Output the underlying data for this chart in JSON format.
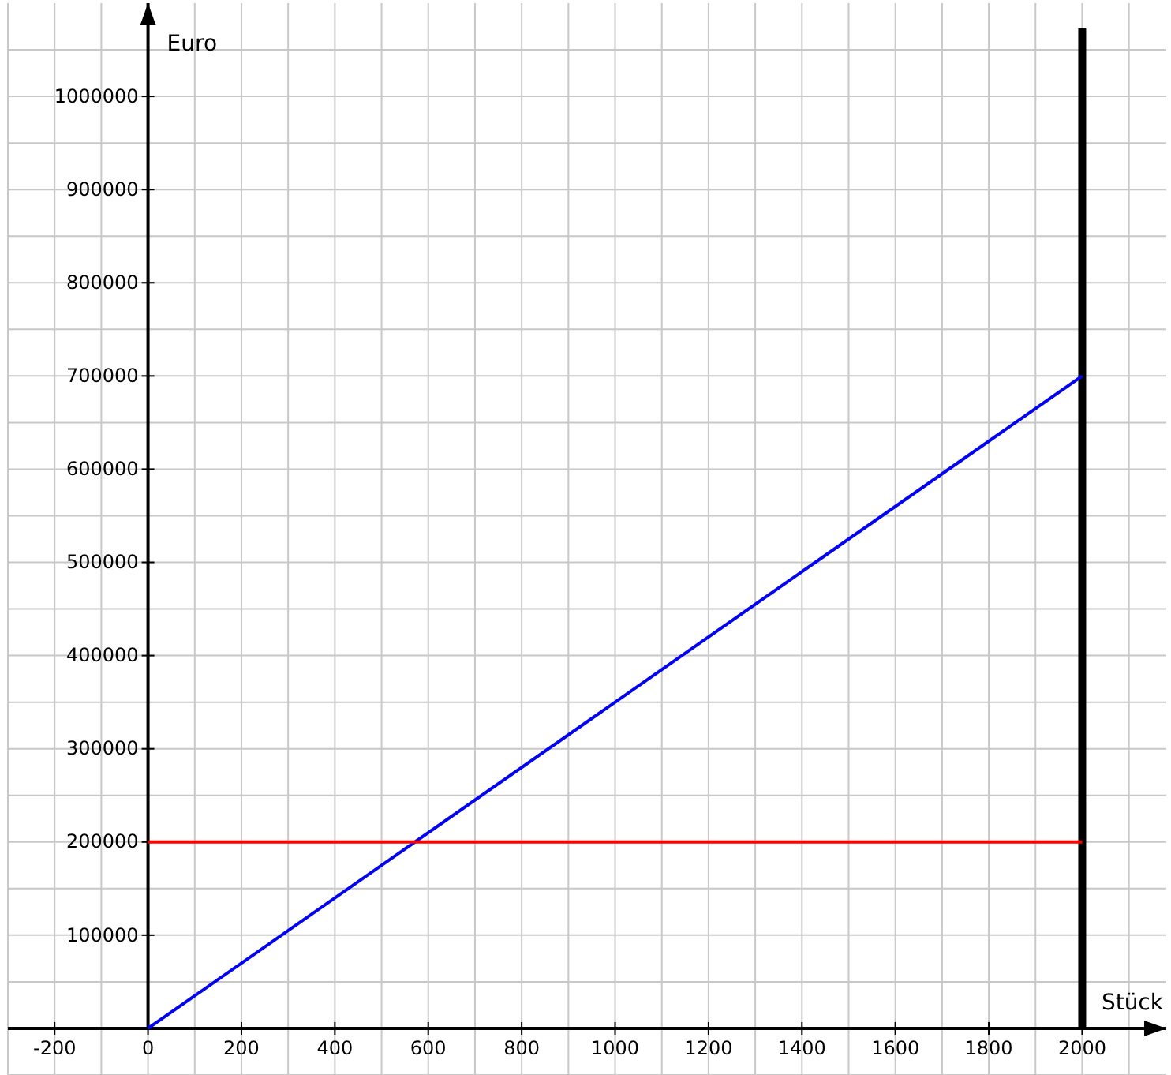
{
  "chart_data": {
    "type": "line",
    "xlabel": "Stück",
    "ylabel": "Euro",
    "xlim": [
      -300,
      2180
    ],
    "ylim": [
      -50000,
      1100000
    ],
    "xticks": [
      {
        "value": -300,
        "label": null
      },
      -200,
      {
        "value": -100,
        "label": null
      },
      0,
      {
        "value": 100,
        "label": null
      },
      200,
      {
        "value": 300,
        "label": null
      },
      400,
      {
        "value": 500,
        "label": null
      },
      600,
      {
        "value": 700,
        "label": null
      },
      800,
      {
        "value": 900,
        "label": null
      },
      1000,
      {
        "value": 1100,
        "label": null
      },
      1200,
      {
        "value": 1300,
        "label": null
      },
      1400,
      {
        "value": 1500,
        "label": null
      },
      1600,
      {
        "value": 1700,
        "label": null
      },
      1800,
      {
        "value": 1900,
        "label": null
      },
      2000,
      {
        "value": 2100,
        "label": null
      }
    ],
    "yticks": [
      {
        "value": -50000,
        "label": null
      },
      {
        "value": 0,
        "label": null
      },
      {
        "value": 50000,
        "label": null
      },
      100000,
      {
        "value": 150000,
        "label": null
      },
      200000,
      {
        "value": 250000,
        "label": null
      },
      300000,
      {
        "value": 350000,
        "label": null
      },
      400000,
      {
        "value": 450000,
        "label": null
      },
      500000,
      {
        "value": 550000,
        "label": null
      },
      600000,
      {
        "value": 650000,
        "label": null
      },
      700000,
      {
        "value": 750000,
        "label": null
      },
      800000,
      {
        "value": 850000,
        "label": null
      },
      900000,
      {
        "value": 950000,
        "label": null
      },
      1000000,
      {
        "value": 1050000,
        "label": null
      }
    ],
    "grid": true,
    "marker": "none",
    "line_style": "solid",
    "x": [
      0,
      2000
    ],
    "series": [
      {
        "color": "#0000ff",
        "values": [
          0,
          700000
        ]
      },
      {
        "color": "#ff0000",
        "values": [
          200000,
          200000
        ]
      }
    ],
    "ref_lines": [
      {
        "axis": "x",
        "value": 2000,
        "color": "#000000"
      }
    ]
  }
}
